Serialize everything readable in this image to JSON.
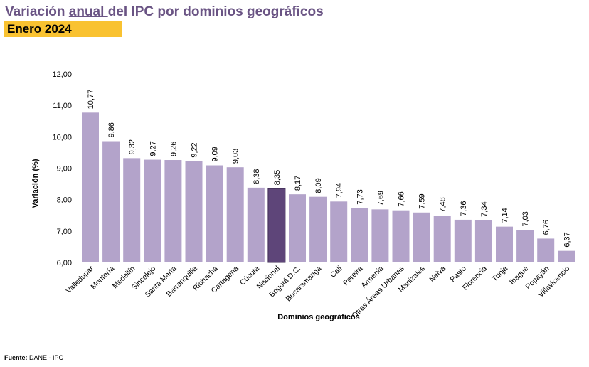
{
  "header": {
    "title_pre": "Variación ",
    "title_underlined": "anual ",
    "title_post": "del IPC por dominios geográficos",
    "subtitle": "Enero 2024"
  },
  "footer": {
    "label": "Fuente:",
    "source": " DANE - IPC"
  },
  "colors": {
    "bar": "#b3a3ca",
    "highlight": "#5e4579",
    "title": "#6a5484",
    "subtitle_bg": "#f9c231"
  },
  "chart_data": {
    "type": "bar",
    "title": "Variación anual del IPC por dominios geográficos",
    "xlabel": "Dominios geográficos",
    "ylabel": "Variación (%)",
    "ylim": [
      6,
      12
    ],
    "yticks": [
      "6,00",
      "7,00",
      "8,00",
      "9,00",
      "10,00",
      "11,00",
      "12,00"
    ],
    "grid": false,
    "highlight": "Nacional",
    "categories": [
      "Valledupar",
      "Montería",
      "Medellín",
      "Sincelejo",
      "Santa Marta",
      "Barranquilla",
      "Riohacha",
      "Cartagena",
      "Cúcuta",
      "Nacional",
      "Bogotá D.C.",
      "Bucaramanga",
      "Cali",
      "Pereira",
      "Armenia",
      "Otras Áreas Urbanas",
      "Manizales",
      "Neiva",
      "Pasto",
      "Florencia",
      "Tunja",
      "Ibagué",
      "Popayán",
      "Villavicencio"
    ],
    "values": [
      10.77,
      9.86,
      9.32,
      9.27,
      9.26,
      9.22,
      9.09,
      9.03,
      8.38,
      8.35,
      8.17,
      8.09,
      7.94,
      7.73,
      7.69,
      7.66,
      7.59,
      7.48,
      7.36,
      7.34,
      7.14,
      7.03,
      6.76,
      6.37
    ],
    "labels": [
      "10,77",
      "9,86",
      "9,32",
      "9,27",
      "9,26",
      "9,22",
      "9,09",
      "9,03",
      "8,38",
      "8,35",
      "8,17",
      "8,09",
      "7,94",
      "7,73",
      "7,69",
      "7,66",
      "7,59",
      "7,48",
      "7,36",
      "7,34",
      "7,14",
      "7,03",
      "6,76",
      "6,37"
    ]
  }
}
